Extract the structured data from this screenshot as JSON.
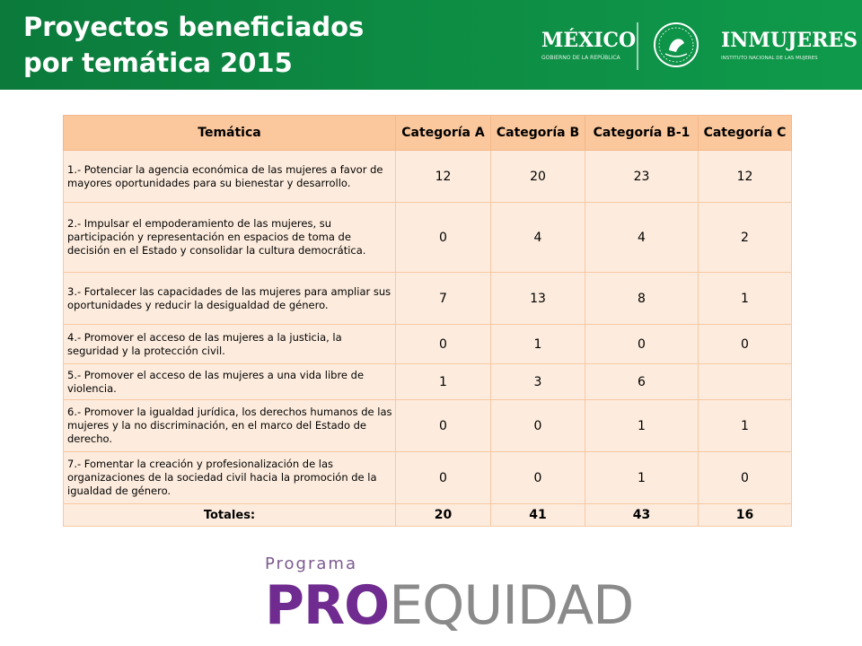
{
  "header": {
    "title_line1": "Proyectos beneficiados",
    "title_line2": "por temática 2015",
    "logo_mexico": "MÉXICO",
    "logo_mexico_sub": "GOBIERNO DE LA REPÚBLICA",
    "logo_inmujeres": "INMUJERES",
    "logo_inmujeres_sub": "INSTITUTO NACIONAL DE LAS MUJERES",
    "color": "#0d8a43"
  },
  "table": {
    "headers": [
      "Temática",
      "Categoría A",
      "Categoría B",
      "Categoría B-1",
      "Categoría C"
    ],
    "rows": [
      {
        "theme": "1.-  Potenciar la agencia económica de las mujeres a favor de mayores oportunidades para su bienestar y desarrollo.",
        "a": "12",
        "b": "20",
        "b1": "23",
        "c": "12"
      },
      {
        "theme": "2.-  Impulsar el empoderamiento de las mujeres, su participación y representación en espacios de toma de decisión en el Estado y consolidar la cultura democrática.",
        "a": "0",
        "b": "4",
        "b1": "4",
        "c": "2"
      },
      {
        "theme": "3.-  Fortalecer las capacidades de las mujeres para ampliar sus oportunidades y reducir la desigualdad de género.",
        "a": "7",
        "b": "13",
        "b1": "8",
        "c": "1"
      },
      {
        "theme": "4.-  Promover el acceso de las mujeres a la justicia, la seguridad y la protección civil.",
        "a": "0",
        "b": "1",
        "b1": "0",
        "c": "0"
      },
      {
        "theme": "5.-  Promover el acceso de las mujeres a una vida libre de violencia.",
        "a": "1",
        "b": "3",
        "b1": "6",
        "c": ""
      },
      {
        "theme": "6.-  Promover la igualdad jurídica, los derechos humanos de las mujeres y la no discriminación, en el marco del Estado de derecho.",
        "a": "0",
        "b": "0",
        "b1": "1",
        "c": "1"
      },
      {
        "theme": "7.-  Fomentar la creación y profesionalización de las organizaciones de la sociedad civil hacia la promoción de la igualdad de género.",
        "a": "0",
        "b": "0",
        "b1": "1",
        "c": "0"
      }
    ],
    "totals": {
      "label": "Totales:",
      "a": "20",
      "b": "41",
      "b1": "43",
      "c": "16"
    }
  },
  "footer_logo": {
    "small": "Programa",
    "big_pr": "PRO",
    "big_rest": "EQUIDAD"
  }
}
